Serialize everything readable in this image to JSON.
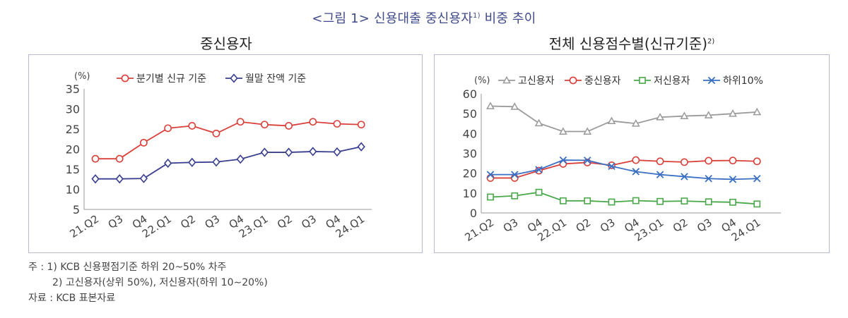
{
  "figure": {
    "title": "<그림 1> 신용대출 중신용자",
    "title_sup": "1)",
    "title_tail": " 비중 추이"
  },
  "notes": {
    "line1": "주 : 1) KCB 신용평점기준 하위 20~50% 차주",
    "line2": "2) 고신용자(상위 50%), 저신용자(하위 10∼20%)",
    "line3": "자료 : KCB 표본자료"
  },
  "chart_data": [
    {
      "type": "line",
      "title": "중신용자",
      "title_sup": "",
      "ylabel": "(%)",
      "ylim": [
        5,
        35
      ],
      "yticks": [
        5,
        10,
        15,
        20,
        25,
        30,
        35
      ],
      "categories": [
        "21.Q2",
        "Q3",
        "Q4",
        "22.Q1",
        "Q2",
        "Q3",
        "Q4",
        "23.Q1",
        "Q2",
        "Q3",
        "Q4",
        "24.Q1"
      ],
      "legend_position": "top",
      "series": [
        {
          "name": "분기별 신규 기준",
          "color": "#d9403a",
          "marker": "circle",
          "values": [
            17.6,
            17.6,
            21.6,
            25.2,
            25.8,
            23.9,
            26.8,
            26.1,
            25.8,
            26.8,
            26.3,
            26.1
          ]
        },
        {
          "name": "월말 잔액 기준",
          "color": "#3a3f8f",
          "marker": "diamond",
          "values": [
            12.6,
            12.6,
            12.7,
            16.5,
            16.7,
            16.8,
            17.5,
            19.2,
            19.2,
            19.4,
            19.3,
            20.6
          ]
        }
      ]
    },
    {
      "type": "line",
      "title": "전체 신용점수별(신규기준)",
      "title_sup": "2)",
      "ylabel": "(%)",
      "ylim": [
        0,
        60
      ],
      "yticks": [
        0,
        10,
        20,
        30,
        40,
        50,
        60
      ],
      "categories": [
        "21.Q2",
        "Q3",
        "Q4",
        "22.Q1",
        "Q2",
        "Q3",
        "Q4",
        "23.Q1",
        "Q2",
        "Q3",
        "Q4",
        "24.Q1"
      ],
      "legend_position": "top",
      "series": [
        {
          "name": "고신용자",
          "color": "#9a9a9a",
          "marker": "triangle",
          "values": [
            53.8,
            53.5,
            45.2,
            41.0,
            41.0,
            46.3,
            45.0,
            48.2,
            48.8,
            49.2,
            50.0,
            50.8
          ]
        },
        {
          "name": "중신용자",
          "color": "#d9403a",
          "marker": "circle",
          "values": [
            17.6,
            17.6,
            21.3,
            24.7,
            25.4,
            24.0,
            26.6,
            26.0,
            25.6,
            26.3,
            26.4,
            26.0
          ]
        },
        {
          "name": "저신용자",
          "color": "#4aa84a",
          "marker": "square",
          "values": [
            8.0,
            8.6,
            10.4,
            6.1,
            6.1,
            5.5,
            6.2,
            5.8,
            6.0,
            5.6,
            5.4,
            4.5
          ]
        },
        {
          "name": "하위10%",
          "color": "#3a6fc4",
          "marker": "x",
          "values": [
            19.3,
            19.3,
            21.8,
            26.6,
            26.5,
            23.5,
            20.8,
            19.3,
            18.3,
            17.3,
            16.9,
            17.3
          ]
        }
      ]
    }
  ]
}
